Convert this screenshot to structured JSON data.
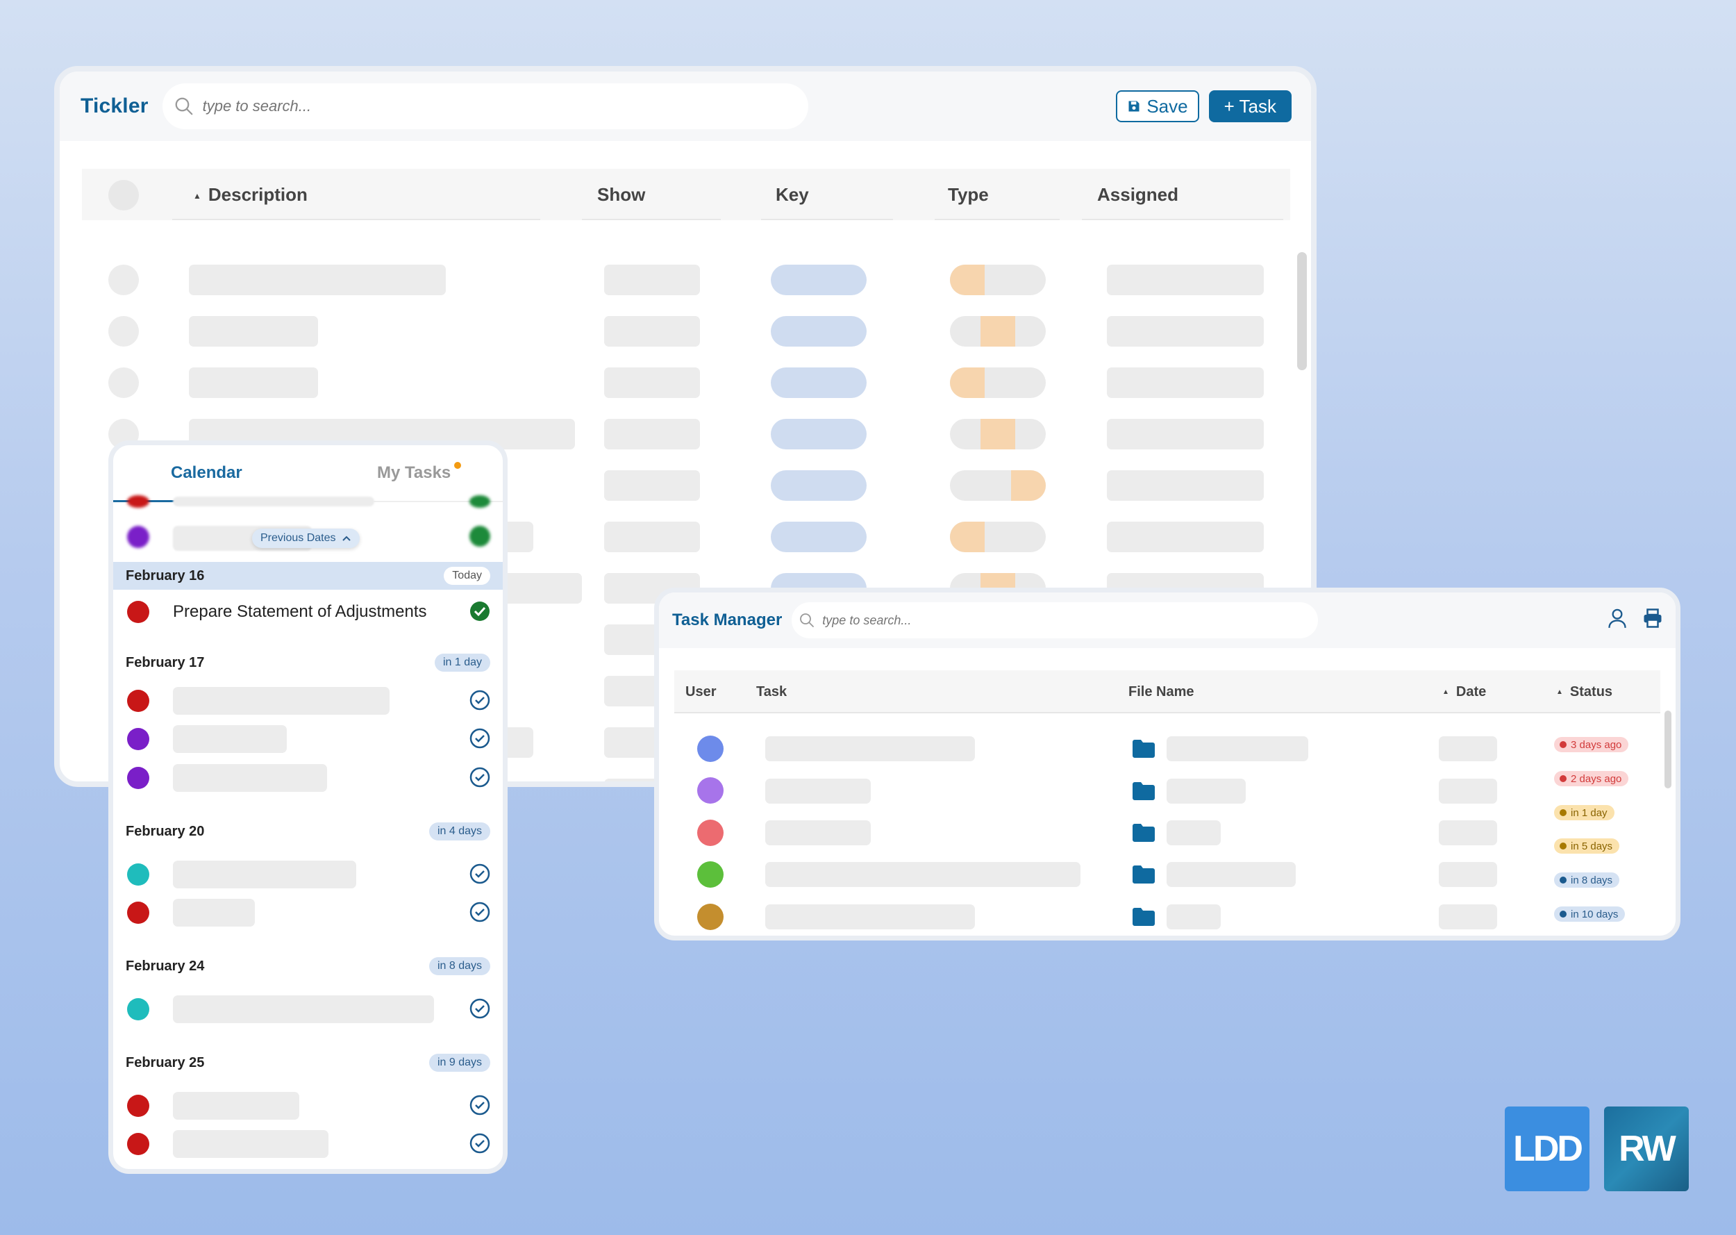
{
  "tickler": {
    "title": "Tickler",
    "search_placeholder": "type to search...",
    "save_label": "Save",
    "task_label": "+ Task",
    "columns": [
      "Description",
      "Show",
      "Key",
      "Type",
      "Assigned"
    ]
  },
  "calendar": {
    "tabs": [
      "Calendar",
      "My Tasks"
    ],
    "previous_dates_label": "Previous Dates",
    "groups": [
      {
        "date": "February 16",
        "relative": "Today",
        "events": [
          {
            "text": "Prepare Statement of Adjustments",
            "color": "#c81717",
            "done": true
          }
        ]
      },
      {
        "date": "February 17",
        "relative": "in 1 day"
      },
      {
        "date": "February 20",
        "relative": "in 4 days"
      },
      {
        "date": "February 24",
        "relative": "in 8 days"
      },
      {
        "date": "February 25",
        "relative": "in 9 days"
      }
    ]
  },
  "task_manager": {
    "title": "Task Manager",
    "search_placeholder": "type to search...",
    "columns": [
      "User",
      "Task",
      "File Name",
      "Date",
      "Status"
    ],
    "rows": [
      {
        "user_color": "#6d8bea",
        "status": "3 days ago",
        "status_kind": "red"
      },
      {
        "user_color": "#a774ea",
        "status": "2 days ago",
        "status_kind": "red"
      },
      {
        "user_color": "#ec6b70",
        "status": "in 1 day",
        "status_kind": "yellow"
      },
      {
        "user_color": "#5cbf3b",
        "status": "in 5 days",
        "status_kind": "yellow"
      },
      {
        "user_color": "#c48e2e",
        "status": "in 8 days",
        "status_kind": "blue"
      },
      {
        "user_color": "",
        "status": "in 10 days",
        "status_kind": "blue"
      }
    ]
  },
  "logos": {
    "ldd": "LDD",
    "rw": "RW"
  },
  "colors": {
    "accent": "#0f6aa0",
    "background": "#b6cbee"
  }
}
